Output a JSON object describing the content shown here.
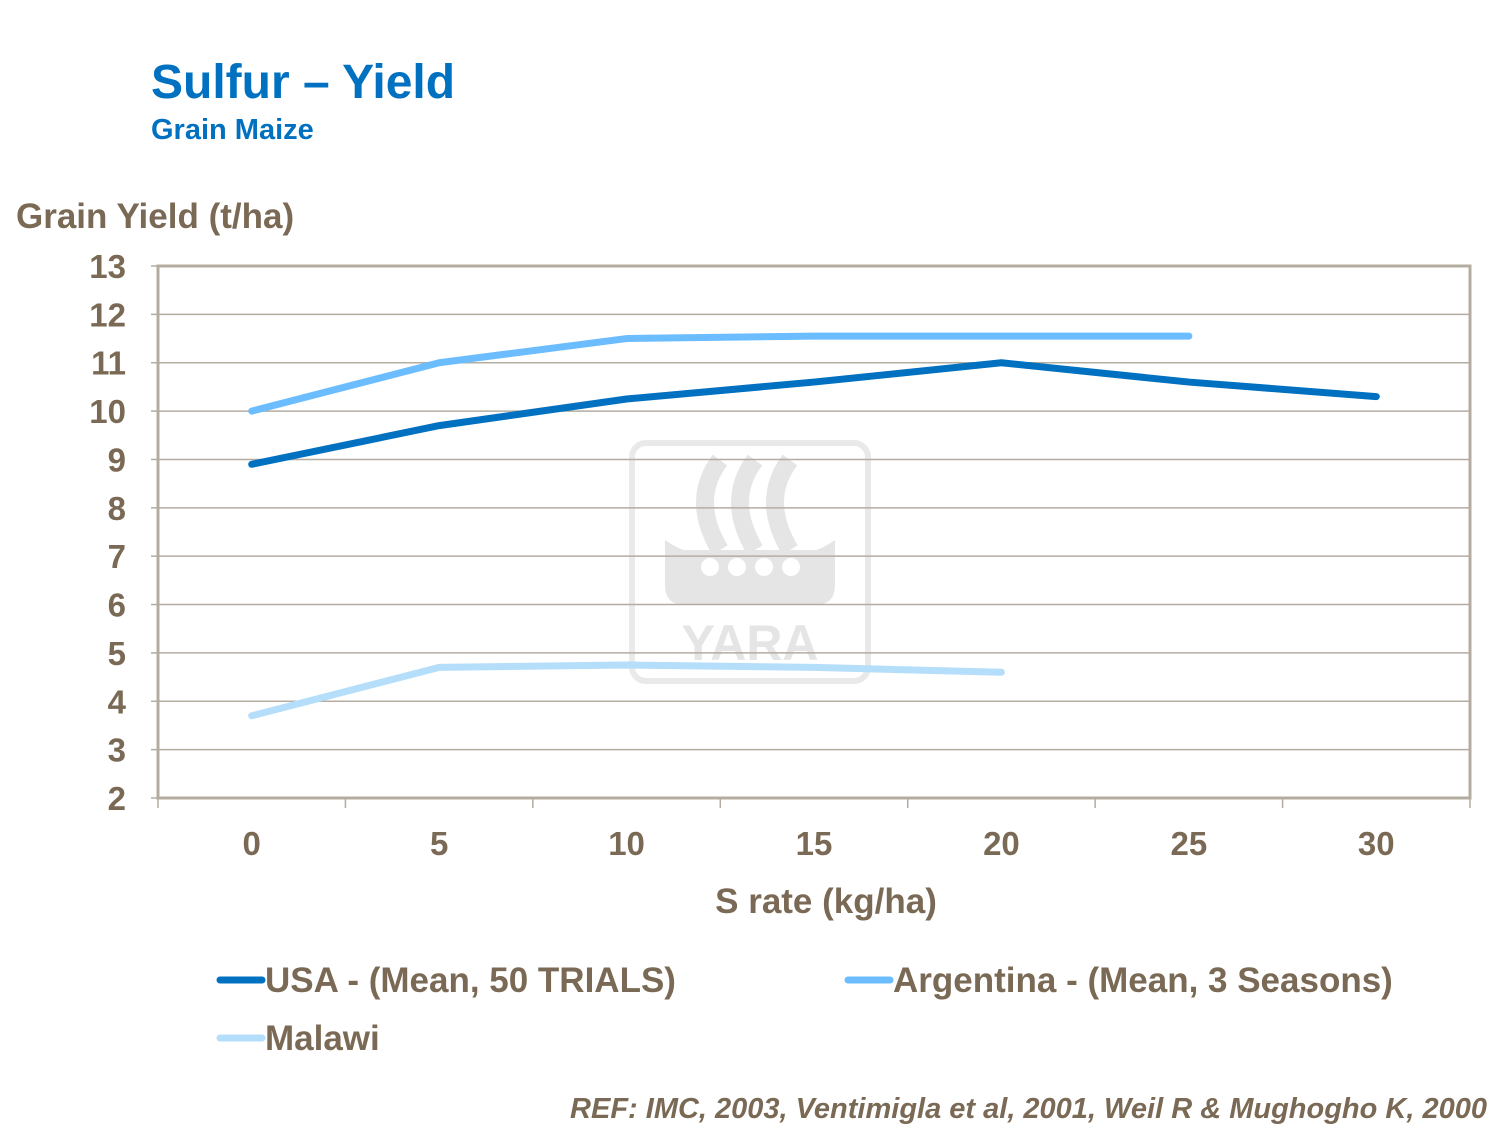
{
  "title": "Sulfur – Yield",
  "subtitle": "Grain Maize",
  "reference": "REF: IMC, 2003, Ventimigla et al, 2001, Weil R & Mughogho K, 2000",
  "watermark": "YARA",
  "chart_data": {
    "type": "line",
    "xlabel": "S rate (kg/ha)",
    "ylabel": "Grain Yield (t/ha)",
    "categories": [
      "0",
      "5",
      "10",
      "15",
      "20",
      "25",
      "30"
    ],
    "ylim": [
      2,
      13
    ],
    "yticks": [
      2,
      3,
      4,
      5,
      6,
      7,
      8,
      9,
      10,
      11,
      12,
      13
    ],
    "grid": true,
    "legend_position": "bottom",
    "series": [
      {
        "name": "USA - (Mean, 50 TRIALS)",
        "color": "#0070C0",
        "values": [
          8.9,
          9.7,
          10.25,
          10.6,
          11.0,
          10.6,
          10.3
        ]
      },
      {
        "name": "Argentina - (Mean, 3 Seasons)",
        "color": "#6BBDFF",
        "values": [
          10.0,
          11.0,
          11.5,
          11.55,
          11.55,
          11.55,
          null
        ]
      },
      {
        "name": "Malawi",
        "color": "#B5DEFB",
        "values": [
          3.7,
          4.7,
          4.75,
          4.7,
          4.6,
          null,
          null
        ]
      }
    ]
  },
  "colors": {
    "title": "#0070C0",
    "text": "#7A6A55",
    "grid": "#B4ACA0"
  }
}
